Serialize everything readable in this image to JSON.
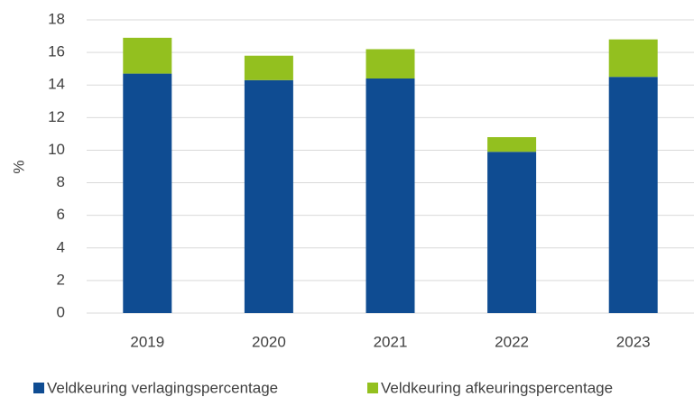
{
  "chart_data": {
    "type": "stacked_bar",
    "categories": [
      "2019",
      "2020",
      "2021",
      "2022",
      "2023"
    ],
    "series": [
      {
        "name": "Veldkeuring verlagingspercentage",
        "color": "#0f4c92",
        "values": [
          14.7,
          14.3,
          14.4,
          9.9,
          14.5
        ]
      },
      {
        "name": "Veldkeuring afkeuringspercentage",
        "color": "#93c01f",
        "values": [
          2.2,
          1.5,
          1.8,
          0.9,
          2.3
        ]
      }
    ],
    "y_label": "%",
    "ylim": [
      0,
      18
    ],
    "yticks": [
      0,
      2,
      4,
      6,
      8,
      10,
      12,
      14,
      16,
      18
    ],
    "grid": true,
    "legend": "bottom"
  }
}
